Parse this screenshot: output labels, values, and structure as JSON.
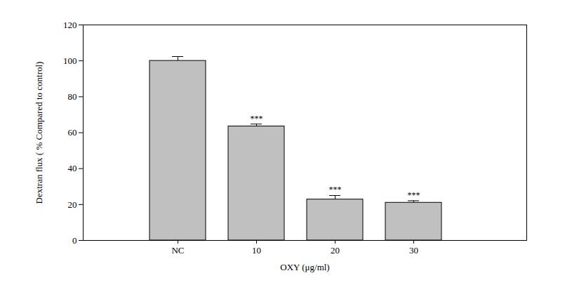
{
  "chart_data": {
    "type": "bar",
    "categories": [
      "NC",
      "10",
      "20",
      "30"
    ],
    "values": [
      100,
      63.5,
      22.8,
      21
    ],
    "errors": [
      2.4,
      1.3,
      2.2,
      1.1
    ],
    "annotations": [
      {
        "category": "10",
        "text": "***"
      },
      {
        "category": "20",
        "text": "***"
      },
      {
        "category": "30",
        "text": "***"
      }
    ],
    "color": "#c0c0c0",
    "xlabel": "OXY (μg/ml)",
    "ylabel": "Dextran flux ( % Compared to control)",
    "ylim": [
      0,
      120
    ],
    "yticks": [
      0,
      20,
      40,
      60,
      80,
      100,
      120
    ]
  }
}
